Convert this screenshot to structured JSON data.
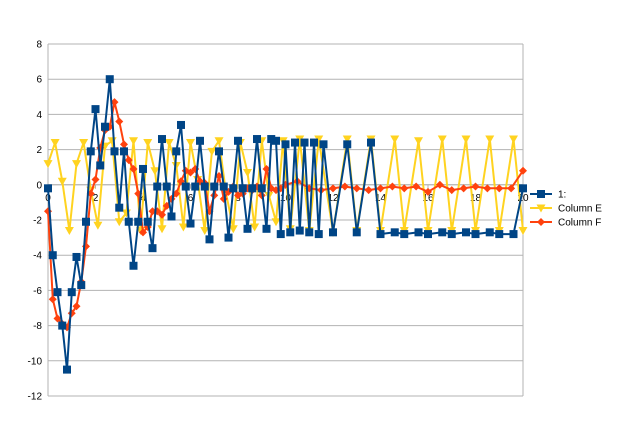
{
  "chart_data": {
    "type": "line",
    "title": "",
    "xlabel": "",
    "ylabel": "",
    "xlim": [
      0,
      20
    ],
    "ylim": [
      -12,
      8
    ],
    "xticks": [
      0,
      2,
      4,
      6,
      8,
      10,
      12,
      14,
      16,
      18,
      20
    ],
    "xtick_labels": [
      "0",
      "2",
      "4",
      "6",
      "8",
      "10",
      "12",
      "14",
      "16",
      "18",
      "20"
    ],
    "yticks": [
      8,
      6,
      4,
      2,
      0,
      -2,
      -4,
      -6,
      -8,
      -10,
      -12
    ],
    "ytick_labels": [
      "8",
      "6",
      "4",
      "2",
      "0",
      "-2",
      "-4",
      "-6",
      "-8",
      "-10",
      "-12"
    ],
    "grid": "horizontal",
    "legend_position": "right",
    "series": [
      {
        "name": "1:",
        "color": "#004586",
        "marker": "square",
        "x": [
          0,
          0.2,
          0.4,
          0.6,
          0.8,
          1.0,
          1.2,
          1.4,
          1.6,
          1.8,
          2.0,
          2.2,
          2.4,
          2.6,
          2.8,
          3.0,
          3.2,
          3.4,
          3.6,
          3.8,
          4.0,
          4.2,
          4.4,
          4.6,
          4.8,
          5.0,
          5.2,
          5.4,
          5.6,
          5.8,
          6.0,
          6.2,
          6.4,
          6.6,
          6.8,
          7.0,
          7.2,
          7.4,
          7.6,
          7.8,
          8.0,
          8.2,
          8.4,
          8.6,
          8.8,
          9.0,
          9.2,
          9.4,
          9.6,
          9.8,
          10.0,
          10.2,
          10.4,
          10.6,
          10.8,
          11.0,
          11.2,
          11.4,
          11.6,
          12.0,
          12.6,
          13.0,
          13.6,
          14.0,
          14.6,
          15.0,
          15.6,
          16.0,
          16.6,
          17.0,
          17.6,
          18.0,
          18.6,
          19.0,
          19.6,
          20.0
        ],
        "y": [
          -0.2,
          -4.0,
          -6.1,
          -8.0,
          -10.5,
          -6.1,
          -4.1,
          -5.7,
          -2.1,
          1.9,
          4.3,
          1.1,
          3.3,
          6.0,
          1.9,
          -1.3,
          1.9,
          -2.1,
          -4.6,
          -2.1,
          0.9,
          -2.1,
          -3.6,
          -0.1,
          2.6,
          -0.1,
          -1.8,
          1.9,
          3.4,
          -0.1,
          -2.2,
          -0.1,
          2.5,
          -0.1,
          -3.1,
          -0.1,
          1.9,
          -0.1,
          -3.0,
          -0.2,
          2.5,
          -0.2,
          -2.5,
          -0.2,
          2.6,
          -0.2,
          -2.5,
          2.6,
          2.5,
          -2.8,
          2.3,
          -2.7,
          2.4,
          -2.6,
          2.4,
          -2.7,
          2.4,
          -2.8,
          2.3,
          -2.7,
          2.3,
          -2.7,
          2.4,
          -2.8,
          -2.7,
          -2.8,
          -2.7,
          -2.8,
          -2.7,
          -2.8,
          -2.7,
          -2.8,
          -2.7,
          -2.8,
          -2.8,
          -0.2
        ]
      },
      {
        "name": "Column E",
        "color": "#ffd320",
        "marker": "triangle-down",
        "x": [
          0,
          0.3,
          0.6,
          0.9,
          1.2,
          1.5,
          1.8,
          2.1,
          2.4,
          2.7,
          3.0,
          3.3,
          3.6,
          3.9,
          4.2,
          4.5,
          4.8,
          5.1,
          5.4,
          5.7,
          6.0,
          6.3,
          6.6,
          6.9,
          7.2,
          7.5,
          7.8,
          8.1,
          8.4,
          8.7,
          9.0,
          9.3,
          9.6,
          9.9,
          10.2,
          10.6,
          11.0,
          11.4,
          12.0,
          12.6,
          13.0,
          13.6,
          14.0,
          14.6,
          15.0,
          15.6,
          16.0,
          16.6,
          17.0,
          17.6,
          18.0,
          18.6,
          19.0,
          19.6,
          20.0
        ],
        "y": [
          1.2,
          2.4,
          0.2,
          -2.6,
          1.2,
          2.4,
          -0.3,
          -2.3,
          2.2,
          2.5,
          -2.1,
          -1.6,
          2.5,
          -2.6,
          2.4,
          0.8,
          -2.5,
          2.4,
          1.1,
          -2.4,
          2.4,
          0.3,
          -2.6,
          1.9,
          2.5,
          -0.5,
          -2.5,
          2.4,
          0.7,
          -2.4,
          2.5,
          -0.6,
          -2.1,
          2.5,
          -2.5,
          2.6,
          -2.6,
          2.6,
          -2.7,
          2.6,
          -2.6,
          2.6,
          -2.6,
          2.6,
          -2.6,
          2.5,
          -2.6,
          2.6,
          -2.6,
          2.6,
          -2.6,
          2.6,
          -2.6,
          2.6,
          -2.6
        ]
      },
      {
        "name": "Column F",
        "color": "#ff420e",
        "marker": "diamond",
        "x": [
          0,
          0.2,
          0.4,
          0.6,
          0.8,
          1.0,
          1.2,
          1.4,
          1.6,
          1.8,
          2.0,
          2.2,
          2.4,
          2.6,
          2.8,
          3.0,
          3.2,
          3.4,
          3.6,
          3.8,
          4.0,
          4.2,
          4.4,
          4.6,
          4.8,
          5.0,
          5.2,
          5.4,
          5.6,
          5.8,
          6.0,
          6.2,
          6.4,
          6.6,
          6.8,
          7.0,
          7.2,
          7.4,
          7.6,
          7.8,
          8.0,
          8.2,
          8.4,
          8.6,
          8.8,
          9.0,
          9.2,
          9.4,
          9.6,
          9.8,
          10.0,
          10.5,
          11.0,
          11.5,
          12.0,
          12.5,
          13.0,
          13.5,
          14.0,
          14.5,
          15.0,
          15.5,
          16.0,
          16.5,
          17.0,
          17.5,
          18.0,
          18.5,
          19.0,
          19.5,
          20.0
        ],
        "y": [
          -1.5,
          -6.5,
          -7.6,
          -7.9,
          -8.1,
          -7.3,
          -6.9,
          -5.5,
          -3.5,
          -0.5,
          0.3,
          2.1,
          3.1,
          3.3,
          4.7,
          3.6,
          2.3,
          1.4,
          0.9,
          -0.5,
          -2.7,
          -2.4,
          -1.5,
          -1.5,
          -1.7,
          -1.2,
          -0.8,
          -0.5,
          0.2,
          0.8,
          0.7,
          0.9,
          0.2,
          0.1,
          -1.5,
          -0.6,
          0.5,
          -0.8,
          -0.4,
          -0.1,
          -0.6,
          -0.5,
          -0.2,
          -0.3,
          -0.1,
          -0.6,
          0.9,
          -0.2,
          -0.3,
          -0.2,
          0.0,
          0.2,
          -0.2,
          -0.3,
          -0.2,
          -0.1,
          -0.2,
          -0.3,
          -0.2,
          -0.1,
          -0.2,
          -0.1,
          -0.4,
          0.0,
          -0.3,
          -0.2,
          -0.1,
          -0.2,
          -0.2,
          -0.2,
          0.8
        ]
      }
    ]
  }
}
